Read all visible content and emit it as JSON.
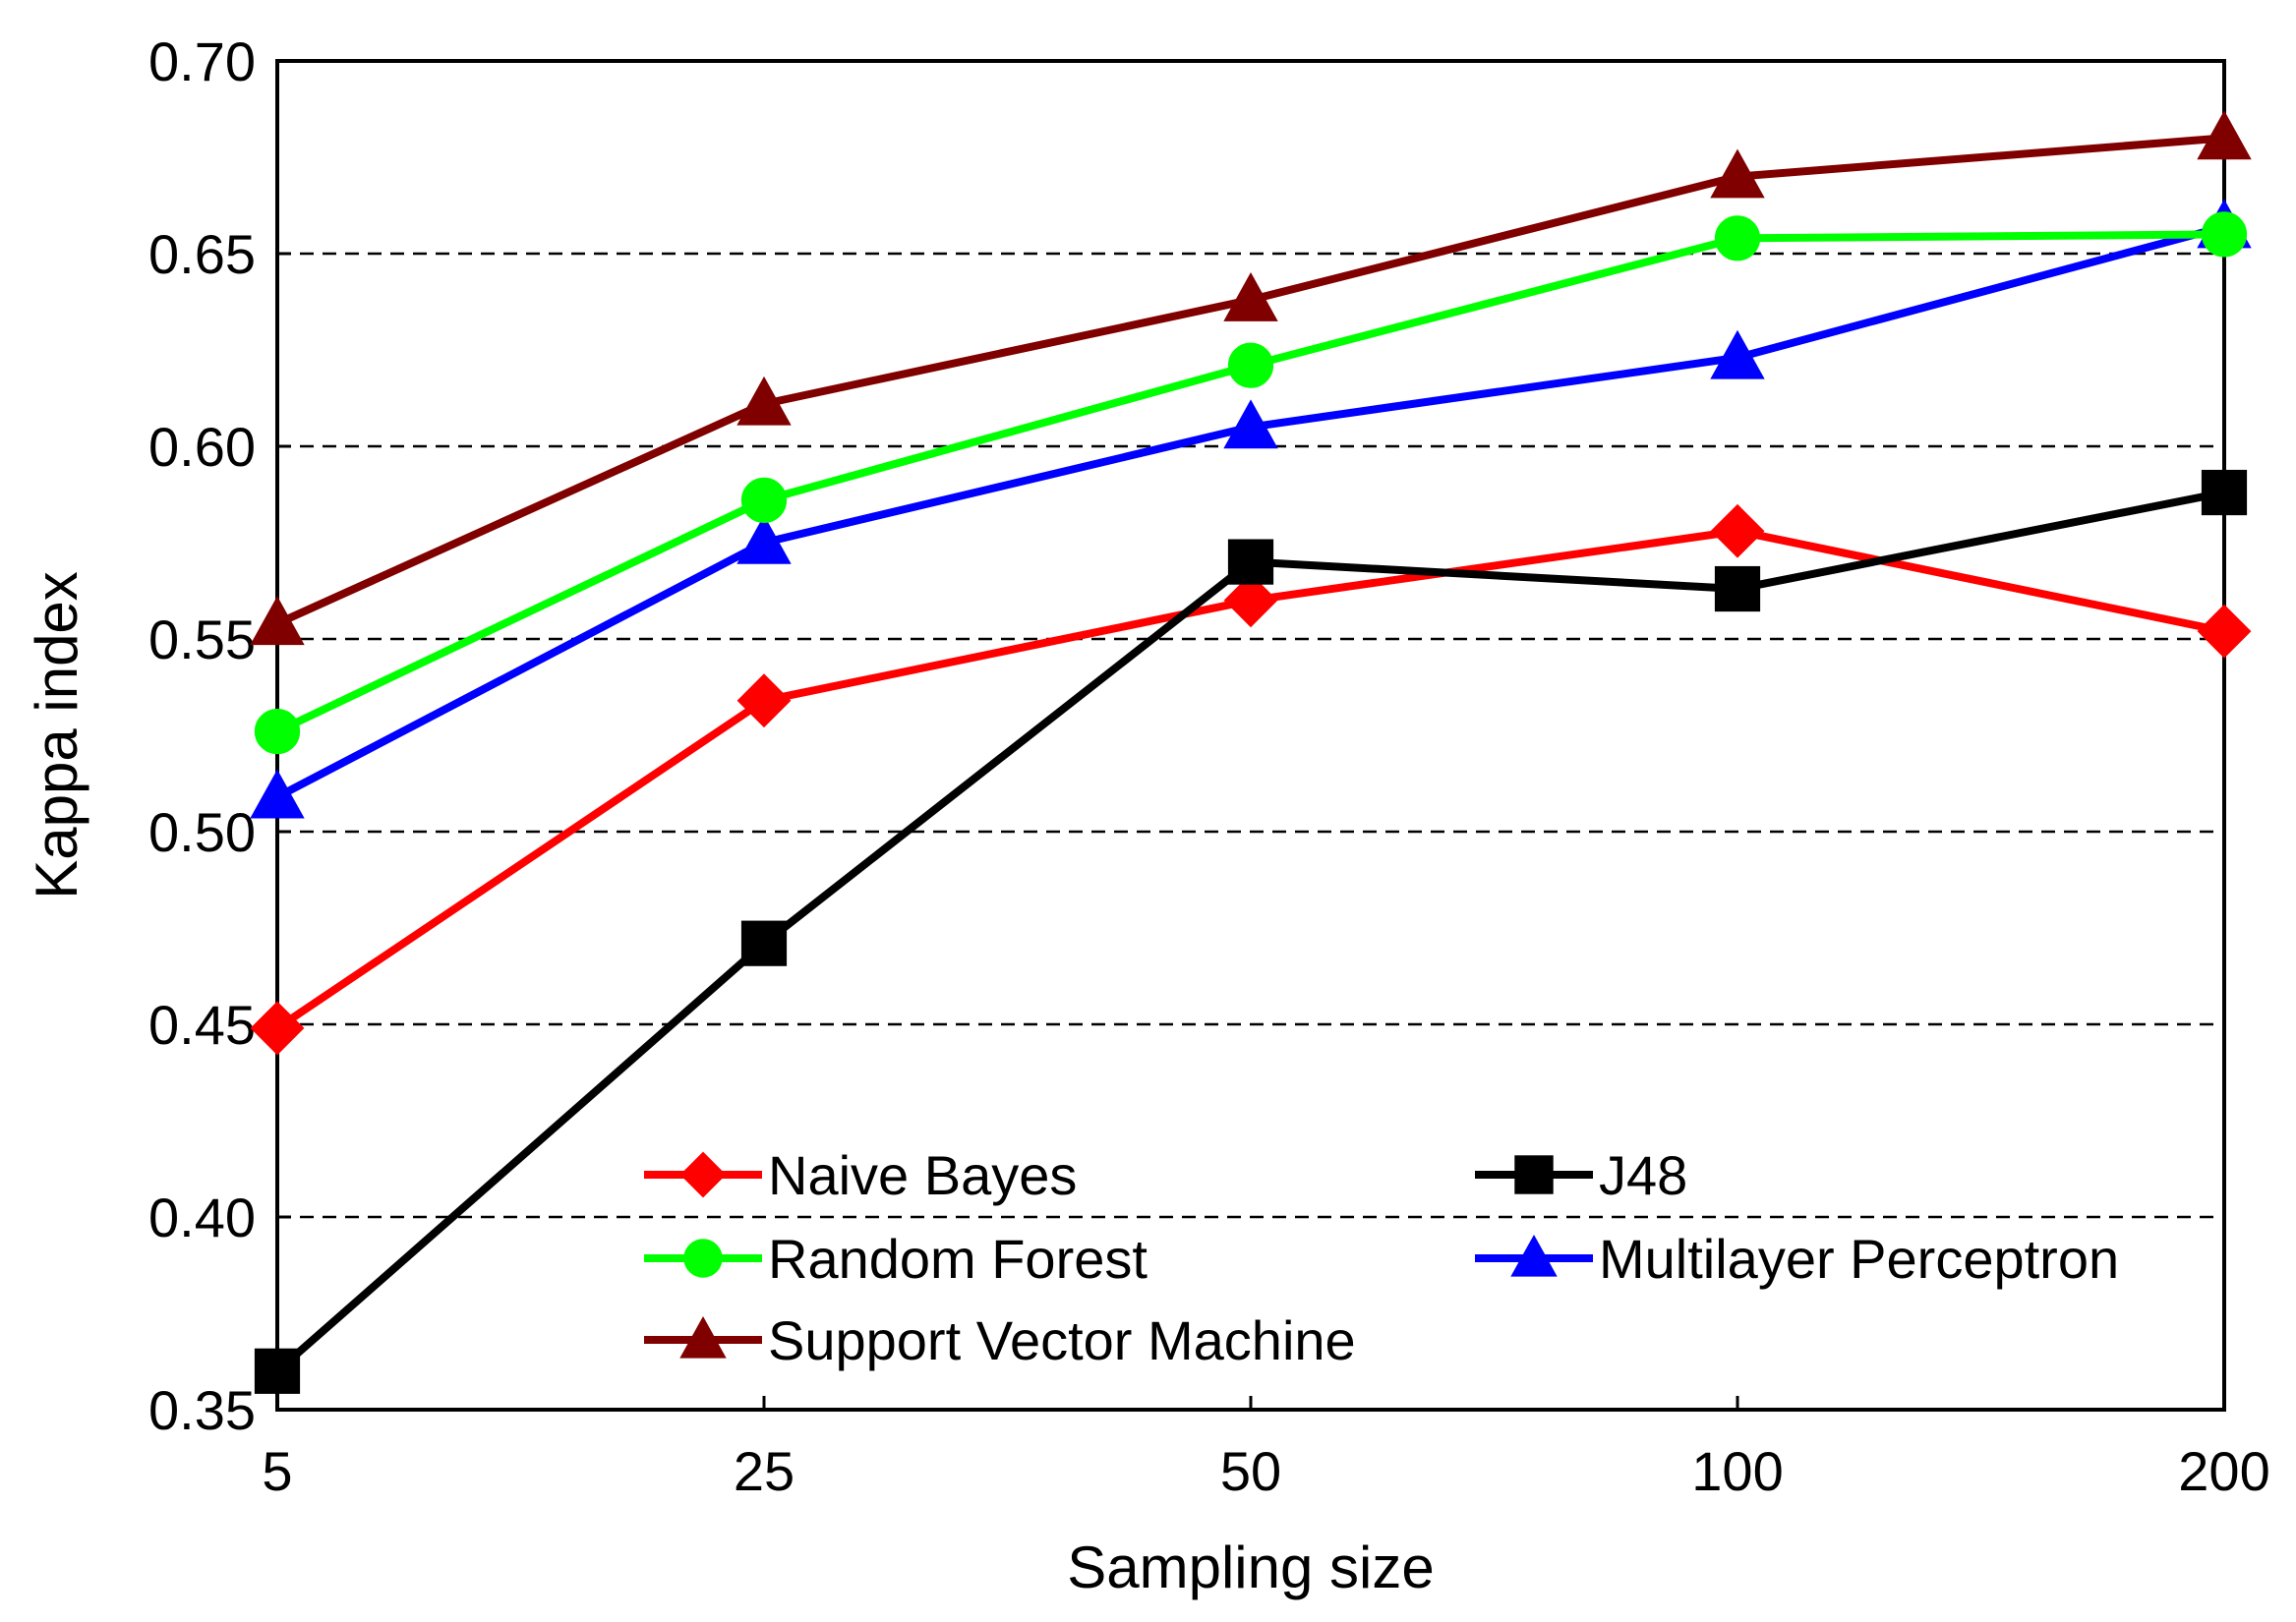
{
  "chart_data": {
    "type": "line",
    "xlabel": "Sampling size",
    "ylabel": "Kappa index",
    "categories": [
      "5",
      "25",
      "50",
      "100",
      "200"
    ],
    "ylim": [
      0.35,
      0.7
    ],
    "yticks": [
      "0.35",
      "0.40",
      "0.45",
      "0.50",
      "0.55",
      "0.60",
      "0.65",
      "0.70"
    ],
    "grid": "horizontal dashed",
    "legend_position": "bottom-center, inside plot",
    "series": [
      {
        "name": "Naive Bayes",
        "color": "#ff0000",
        "marker": "diamond",
        "values": [
          0.449,
          0.534,
          0.56,
          0.578,
          0.552
        ]
      },
      {
        "name": "J48",
        "color": "#000000",
        "marker": "square",
        "values": [
          0.36,
          0.471,
          0.57,
          0.563,
          0.588
        ]
      },
      {
        "name": "Random Forest",
        "color": "#00ff00",
        "marker": "circle",
        "values": [
          0.526,
          0.586,
          0.621,
          0.654,
          0.655
        ]
      },
      {
        "name": "Multilayer Perceptron",
        "color": "#0000ff",
        "marker": "triangle",
        "values": [
          0.509,
          0.575,
          0.605,
          0.623,
          0.657
        ]
      },
      {
        "name": "Support Vector Machine",
        "color": "#800000",
        "marker": "triangle",
        "values": [
          0.554,
          0.611,
          0.638,
          0.67,
          0.68
        ]
      }
    ]
  }
}
